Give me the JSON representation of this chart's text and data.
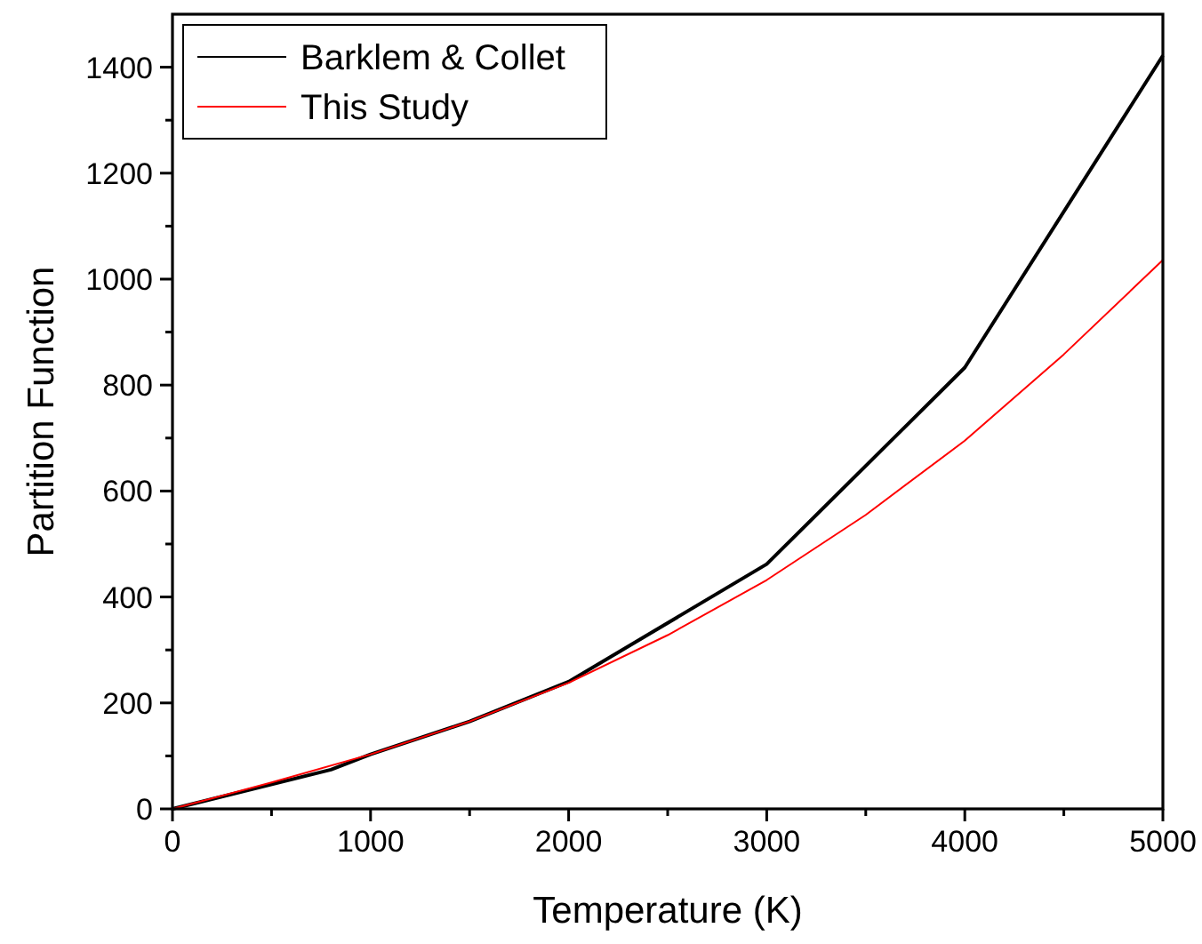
{
  "chart_data": {
    "type": "line",
    "xlabel": "Temperature (K)",
    "ylabel": "Partition Function",
    "xlim": [
      0,
      5000
    ],
    "ylim": [
      0,
      1500
    ],
    "xticks": [
      0,
      1000,
      2000,
      3000,
      4000,
      5000
    ],
    "yticks": [
      0,
      200,
      400,
      600,
      800,
      1000,
      1200,
      1400
    ],
    "legend": "top left",
    "grid": false,
    "marker": "none",
    "line_style": "solid",
    "series": [
      {
        "name": "Barklem & Collet",
        "color": "#000000",
        "x": [
          0,
          800,
          1000,
          1500,
          2000,
          3000,
          4000,
          5000
        ],
        "values": [
          0,
          74,
          103,
          165,
          240,
          462,
          833,
          1422
        ]
      },
      {
        "name": "This Study",
        "color": "#ff0000",
        "x": [
          0,
          500,
          1000,
          1500,
          2000,
          2500,
          3000,
          3500,
          4000,
          4500,
          5000
        ],
        "values": [
          0,
          50,
          103,
          165,
          238,
          328,
          432,
          555,
          695,
          858,
          1036
        ]
      }
    ]
  }
}
